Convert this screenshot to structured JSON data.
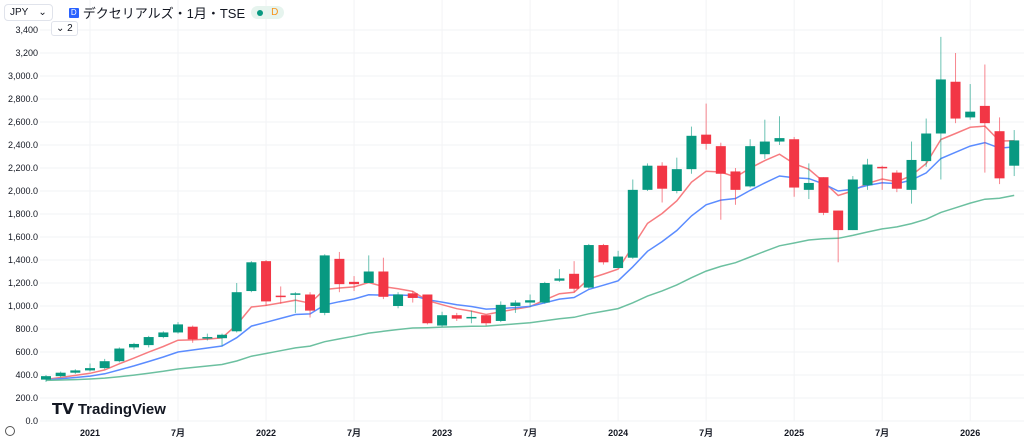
{
  "header": {
    "currency": "JPY",
    "symbol": "デクセリアルズ・1月・TSE",
    "symbol_icon": "D",
    "status_letter": "D",
    "indicator_toggle": "2"
  },
  "branding": {
    "logo_text": "TradingView"
  },
  "colors": {
    "up": "#089981",
    "down": "#f23645",
    "ma_red": "#f77c80",
    "ma_blue": "#5b8cff",
    "ma_green": "#6cc0a0"
  },
  "chart_data": {
    "type": "candlestick",
    "ylim": [
      0,
      3400
    ],
    "y_ticks": [
      "3,400",
      "3,200",
      "3,000.0",
      "2,800.0",
      "2,600.0",
      "2,400.0",
      "2,200.0",
      "2,000.0",
      "1,800.0",
      "1,600.0",
      "1,400.0",
      "1,200.0",
      "1,000.0",
      "800.0",
      "600.0",
      "400.0",
      "200.0",
      "0.0"
    ],
    "y_tick_values": [
      3400,
      3200,
      3000,
      2800,
      2600,
      2400,
      2200,
      2000,
      1800,
      1600,
      1400,
      1200,
      1000,
      800,
      600,
      400,
      200,
      0
    ],
    "x_ticks": [
      {
        "label": "2021",
        "month": "2021-01"
      },
      {
        "label": "7月",
        "month": "2021-07"
      },
      {
        "label": "2022",
        "month": "2022-01"
      },
      {
        "label": "7月",
        "month": "2022-07"
      },
      {
        "label": "2023",
        "month": "2023-01"
      },
      {
        "label": "7月",
        "month": "2023-07"
      },
      {
        "label": "2024",
        "month": "2024-01"
      },
      {
        "label": "7月",
        "month": "2024-07"
      },
      {
        "label": "2025",
        "month": "2025-01"
      },
      {
        "label": "7月",
        "month": "2025-07"
      },
      {
        "label": "2026",
        "month": "2026-01"
      }
    ],
    "candles": [
      [
        "2020-10",
        360,
        400,
        340,
        390
      ],
      [
        "2020-11",
        390,
        430,
        380,
        420
      ],
      [
        "2020-12",
        420,
        450,
        410,
        440
      ],
      [
        "2021-01",
        440,
        500,
        430,
        460
      ],
      [
        "2021-02",
        460,
        540,
        450,
        520
      ],
      [
        "2021-03",
        520,
        640,
        510,
        630
      ],
      [
        "2021-04",
        640,
        680,
        620,
        670
      ],
      [
        "2021-05",
        660,
        740,
        640,
        730
      ],
      [
        "2021-06",
        730,
        780,
        720,
        770
      ],
      [
        "2021-07",
        770,
        860,
        760,
        840
      ],
      [
        "2021-08",
        820,
        830,
        680,
        710
      ],
      [
        "2021-09",
        720,
        760,
        700,
        730
      ],
      [
        "2021-10",
        720,
        760,
        650,
        750
      ],
      [
        "2021-11",
        780,
        1200,
        770,
        1120
      ],
      [
        "2021-12",
        1130,
        1390,
        1120,
        1380
      ],
      [
        "2022-01",
        1390,
        1400,
        1000,
        1040
      ],
      [
        "2022-02",
        1090,
        1170,
        1020,
        1080
      ],
      [
        "2022-03",
        1100,
        1120,
        940,
        1110
      ],
      [
        "2022-04",
        1100,
        1120,
        900,
        960
      ],
      [
        "2022-05",
        940,
        1450,
        920,
        1440
      ],
      [
        "2022-06",
        1410,
        1470,
        1120,
        1190
      ],
      [
        "2022-07",
        1210,
        1260,
        1130,
        1190
      ],
      [
        "2022-08",
        1200,
        1440,
        1200,
        1300
      ],
      [
        "2022-09",
        1300,
        1420,
        1060,
        1080
      ],
      [
        "2022-10",
        1000,
        1120,
        980,
        1100
      ],
      [
        "2022-11",
        1110,
        1130,
        1030,
        1070
      ],
      [
        "2022-12",
        1100,
        1100,
        840,
        850
      ],
      [
        "2023-01",
        830,
        950,
        820,
        920
      ],
      [
        "2023-02",
        920,
        940,
        870,
        890
      ],
      [
        "2023-03",
        900,
        960,
        850,
        905
      ],
      [
        "2023-04",
        920,
        920,
        830,
        850
      ],
      [
        "2023-05",
        870,
        1040,
        860,
        1010
      ],
      [
        "2023-06",
        1000,
        1050,
        940,
        1030
      ],
      [
        "2023-07",
        1030,
        1100,
        990,
        1050
      ],
      [
        "2023-08",
        1030,
        1210,
        1020,
        1200
      ],
      [
        "2023-09",
        1220,
        1320,
        1210,
        1240
      ],
      [
        "2023-10",
        1280,
        1390,
        1120,
        1150
      ],
      [
        "2023-11",
        1160,
        1540,
        1150,
        1530
      ],
      [
        "2023-12",
        1530,
        1540,
        1360,
        1380
      ],
      [
        "2024-01",
        1330,
        1480,
        1330,
        1430
      ],
      [
        "2024-02",
        1420,
        2100,
        1410,
        2010
      ],
      [
        "2024-03",
        2010,
        2240,
        2000,
        2220
      ],
      [
        "2024-04",
        2220,
        2250,
        1900,
        2020
      ],
      [
        "2024-05",
        2000,
        2290,
        1980,
        2190
      ],
      [
        "2024-06",
        2190,
        2560,
        2150,
        2480
      ],
      [
        "2024-07",
        2490,
        2760,
        2360,
        2410
      ],
      [
        "2024-08",
        2390,
        2420,
        1750,
        2150
      ],
      [
        "2024-09",
        2170,
        2200,
        1880,
        2010
      ],
      [
        "2024-10",
        2040,
        2450,
        2030,
        2390
      ],
      [
        "2024-11",
        2320,
        2620,
        2280,
        2430
      ],
      [
        "2024-12",
        2430,
        2650,
        2400,
        2460
      ],
      [
        "2025-01",
        2450,
        2470,
        1950,
        2030
      ],
      [
        "2025-02",
        2010,
        2240,
        1930,
        2070
      ],
      [
        "2025-03",
        2120,
        2120,
        1790,
        1810
      ],
      [
        "2025-04",
        1830,
        1830,
        1380,
        1660
      ],
      [
        "2025-05",
        1660,
        2130,
        1660,
        2100
      ],
      [
        "2025-06",
        2050,
        2280,
        2010,
        2230
      ],
      [
        "2025-07",
        2210,
        2220,
        2010,
        2200
      ],
      [
        "2025-08",
        2160,
        2180,
        1990,
        2020
      ],
      [
        "2025-09",
        2010,
        2430,
        1890,
        2270
      ],
      [
        "2025-10",
        2260,
        2630,
        2210,
        2500
      ],
      [
        "2025-11",
        2500,
        3340,
        2100,
        2970
      ],
      [
        "2025-12",
        2950,
        3200,
        2590,
        2630
      ],
      [
        "2026-01",
        2640,
        2930,
        2620,
        2690
      ],
      [
        "2026-02",
        2740,
        3100,
        2160,
        2590
      ],
      [
        "2026-03",
        2520,
        2640,
        2060,
        2110
      ],
      [
        "2026-04",
        2220,
        2530,
        2130,
        2440
      ]
    ],
    "moving_averages": [
      {
        "color": "#f77c80",
        "period": 6
      },
      {
        "color": "#5b8cff",
        "period": 12
      },
      {
        "color": "#6cc0a0",
        "period": 40
      }
    ],
    "grid": true
  }
}
